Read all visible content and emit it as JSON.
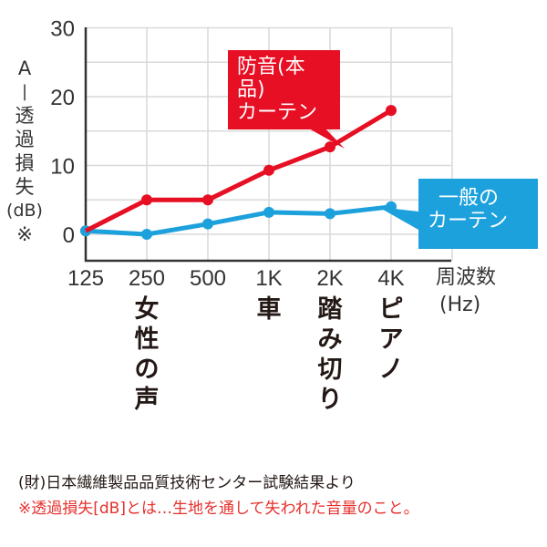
{
  "chart_data": {
    "type": "line",
    "title": "",
    "xlabel": "周波数(Hz)",
    "ylabel": "A-透過損失(dB)※",
    "ylim": [
      0,
      30
    ],
    "yticks": [
      0,
      10,
      20,
      30
    ],
    "grid": true,
    "categories": [
      "125",
      "250",
      "500",
      "1K",
      "2K",
      "4K"
    ],
    "category_annotations": [
      {
        "category": "250",
        "label": "女性の声"
      },
      {
        "category": "1K",
        "label": "車"
      },
      {
        "category": "2K",
        "label": "踏み切り"
      },
      {
        "category": "4K",
        "label": "ピアノ"
      }
    ],
    "series": [
      {
        "name": "防音(本品)カーテン",
        "color": "#e60f23",
        "values": [
          0.5,
          5,
          5,
          9.3,
          12.7,
          18
        ]
      },
      {
        "name": "一般のカーテン",
        "color": "#1da1dc",
        "values": [
          0.5,
          0,
          1.5,
          3.2,
          3,
          4
        ]
      }
    ],
    "legend_position": "callouts"
  },
  "labels": {
    "ylabel_chars": [
      "A",
      "|",
      "透",
      "過",
      "損",
      "失",
      "(dB)",
      "※"
    ],
    "freq_label_line1": "周波数",
    "freq_label_line2": "(Hz)",
    "callout_red_line1": "防音(本品)",
    "callout_red_line2": "カーテン",
    "callout_blue_line1": "一般の",
    "callout_blue_line2": "カーテン",
    "note_source": "(財)日本繊維製品品質技術センター試験結果より",
    "note_definition": "※透過損失[dB]とは…生地を通して失われた音量のこと。"
  },
  "colors": {
    "red": "#e60f23",
    "blue": "#1da1dc",
    "grid": "#d9d9d9",
    "axis": "#333333",
    "note_red": "#e6302d"
  }
}
